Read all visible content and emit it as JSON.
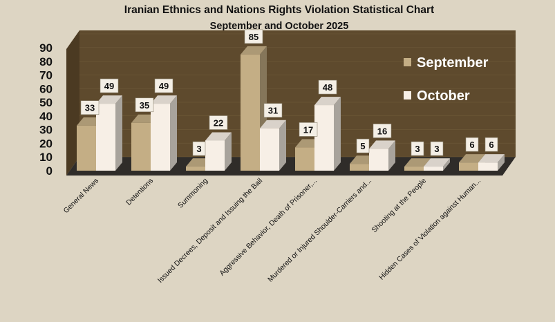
{
  "chart_data": {
    "type": "bar",
    "title": "Iranian Ethnics and Nations Rights Violation Statistical Chart",
    "subtitle": "September and October 2025",
    "categories": [
      "General News",
      "Detentions",
      "Summoning",
      "Issued Decrees, Deposit and Issuing the Bail",
      "Aggressive Behavior, Death of Prisoner,...",
      "Murdered or Injured Shoulder-Carriers and...",
      "Shooting at the People",
      "Hidden Cases of Violation against Human..."
    ],
    "series": [
      {
        "name": "September",
        "values": [
          33,
          35,
          3,
          85,
          17,
          5,
          3,
          6
        ]
      },
      {
        "name": "October",
        "values": [
          49,
          49,
          22,
          31,
          48,
          16,
          3,
          6
        ]
      }
    ],
    "ylim": [
      0,
      90
    ],
    "yticks": [
      0,
      10,
      20,
      30,
      40,
      50,
      60,
      70,
      80,
      90
    ],
    "legend_position": "right",
    "colors": {
      "September": "#c4ae85",
      "October": "#f7efe6",
      "wall": "#5e4a2d",
      "floor": "#2f2c29",
      "background": "#ddd5c3"
    }
  }
}
